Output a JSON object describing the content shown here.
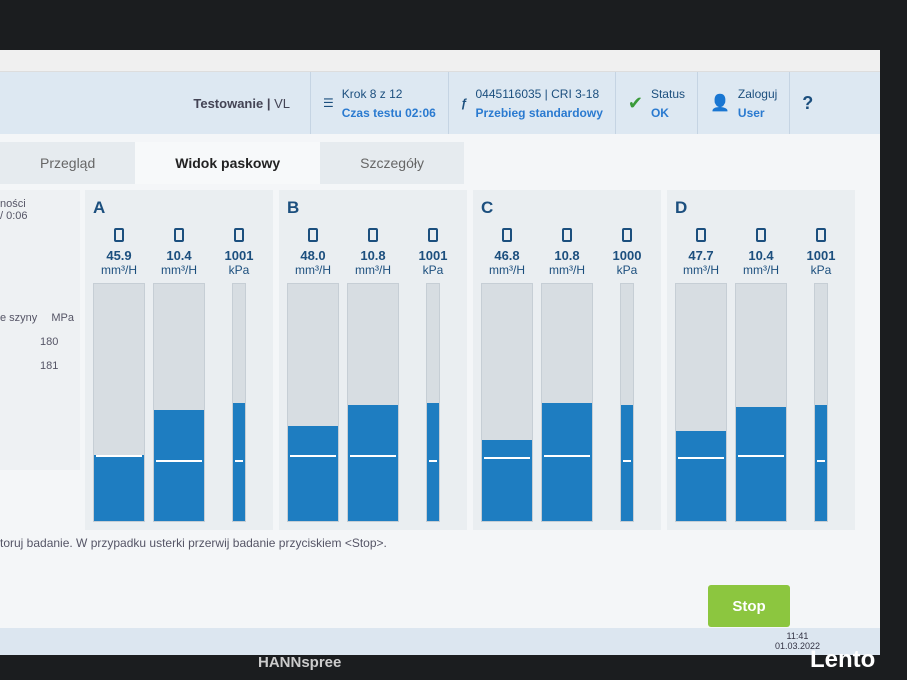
{
  "header": {
    "title": "Testowanie",
    "subtitle": "VL",
    "step": "Krok 8 z 12",
    "time": "Czas testu 02:06",
    "part": "0445116035 | CRI 3-18",
    "mode": "Przebieg standardowy",
    "status_label": "Status",
    "status": "OK",
    "login_label": "Zaloguj",
    "user": "User",
    "help": "?"
  },
  "tabs": [
    "Przegląd",
    "Widok paskowy",
    "Szczegóły"
  ],
  "side": {
    "line1": "ności",
    "line2": "/ 0:06",
    "rail": "e szyny",
    "unit": "MPa",
    "values": [
      "180",
      "181"
    ]
  },
  "groups": [
    {
      "name": "A",
      "columns": [
        {
          "value": "45.9",
          "unit": "mm³/H",
          "level": 28,
          "marker": 27
        },
        {
          "value": "10.4",
          "unit": "mm³/H",
          "level": 47,
          "marker": 25
        },
        {
          "value": "1001",
          "unit": "kPa",
          "level": 50,
          "marker": 25
        }
      ]
    },
    {
      "name": "B",
      "columns": [
        {
          "value": "48.0",
          "unit": "mm³/H",
          "level": 40,
          "marker": 27
        },
        {
          "value": "10.8",
          "unit": "mm³/H",
          "level": 49,
          "marker": 27
        },
        {
          "value": "1001",
          "unit": "kPa",
          "level": 50,
          "marker": 25
        }
      ]
    },
    {
      "name": "C",
      "columns": [
        {
          "value": "46.8",
          "unit": "mm³/H",
          "level": 34,
          "marker": 26
        },
        {
          "value": "10.8",
          "unit": "mm³/H",
          "level": 50,
          "marker": 27
        },
        {
          "value": "1000",
          "unit": "kPa",
          "level": 49,
          "marker": 25
        }
      ]
    },
    {
      "name": "D",
      "columns": [
        {
          "value": "47.7",
          "unit": "mm³/H",
          "level": 38,
          "marker": 26
        },
        {
          "value": "10.4",
          "unit": "mm³/H",
          "level": 48,
          "marker": 27
        },
        {
          "value": "1001",
          "unit": "kPa",
          "level": 49,
          "marker": 25
        }
      ]
    }
  ],
  "footer": {
    "message": "toruj badanie. W przypadku usterki przerwij badanie przyciskiem <Stop>.",
    "stop": "Stop"
  },
  "taskbar": {
    "time": "11:41",
    "date": "01.03.2022"
  },
  "brand": "HANNspree",
  "watermark": "Lento"
}
